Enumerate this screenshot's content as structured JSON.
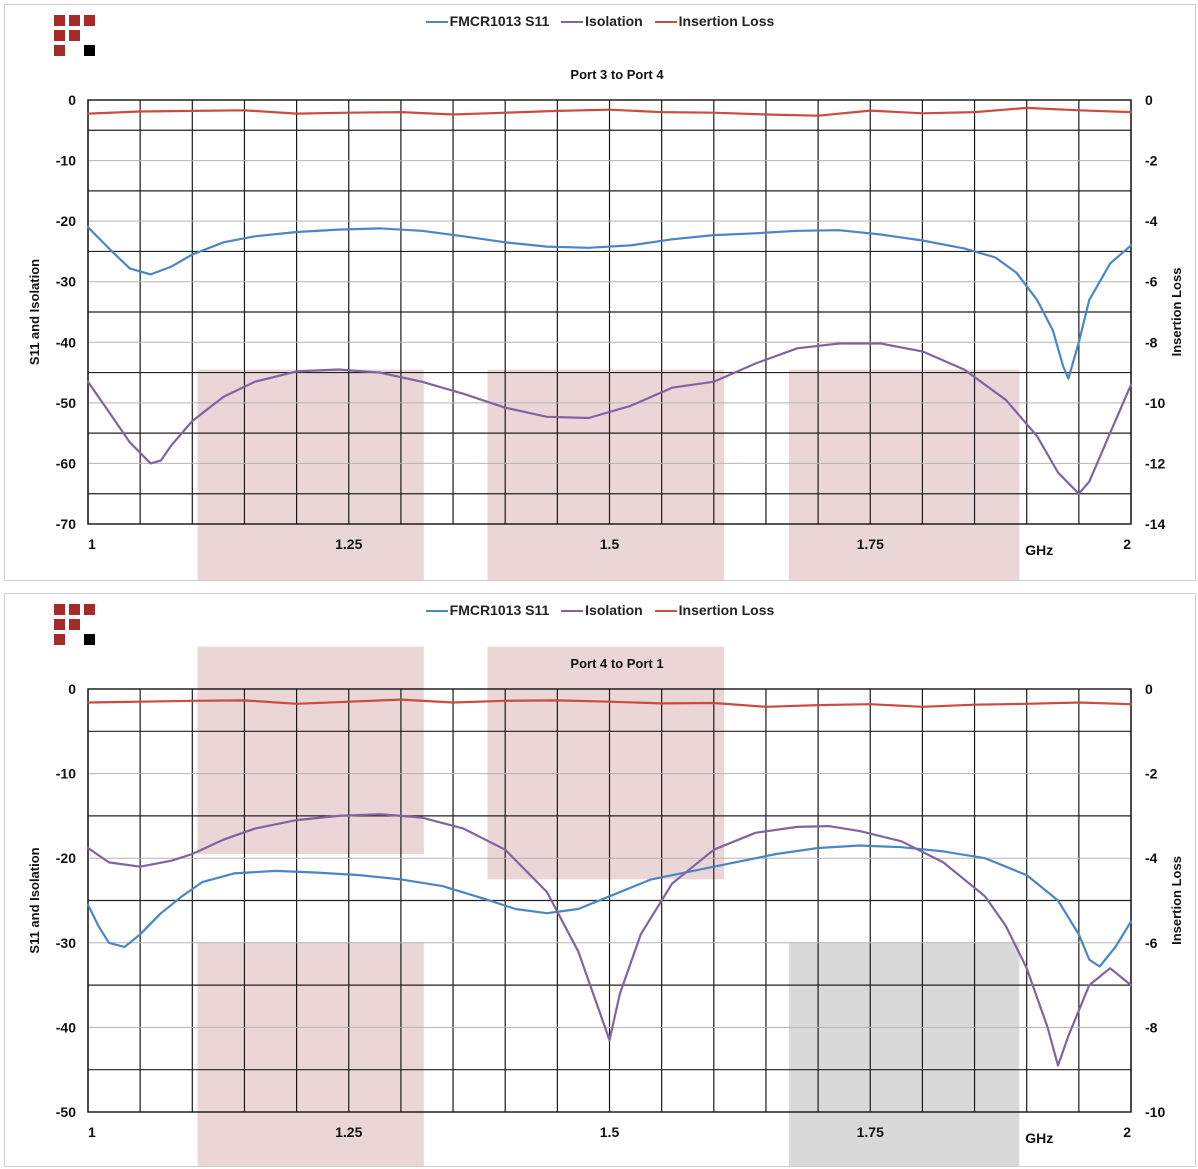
{
  "legend": {
    "s11": "FMCR1013 S11",
    "isolation": "Isolation",
    "insertion_loss": "Insertion Loss"
  },
  "colors": {
    "s11": "#4a86c6",
    "isolation": "#8064a2",
    "insertion_loss": "#cc4b3f",
    "band_pink": "#ead6d6",
    "band_gray": "#d9d9d9",
    "logo_red": "#a52a2a",
    "logo_black": "#000000"
  },
  "chart_data": [
    {
      "type": "line",
      "title": "Port 3 to Port 4",
      "ylabel": "S11 and Isolation",
      "y2label": "Insertion Loss",
      "xunit": "GHz",
      "xlim": [
        1,
        2
      ],
      "ylim": [
        -70,
        0
      ],
      "y2lim": [
        -14,
        0
      ],
      "xticks": [
        "1",
        "1.25",
        "1.5",
        "1.75",
        "2"
      ],
      "yticks": [
        "0",
        "-10",
        "-20",
        "-30",
        "-40",
        "-50",
        "-60",
        "-70"
      ],
      "y2ticks": [
        "0",
        "-2",
        "-4",
        "-6",
        "-8",
        "-10",
        "-12",
        "-14"
      ],
      "grid": true,
      "legend": "top-center",
      "bands": [
        {
          "x0": 1.105,
          "x1": 1.322,
          "y0": -44.5,
          "y1": -80,
          "color": "pink"
        },
        {
          "x0": 1.383,
          "x1": 1.61,
          "y0": -44.5,
          "y1": -80,
          "color": "pink"
        },
        {
          "x0": 1.672,
          "x1": 1.893,
          "y0": -44.5,
          "y1": -80,
          "color": "pink"
        }
      ],
      "series": [
        {
          "name": "FMCR1013 S11",
          "axis": "left",
          "color": "s11",
          "x": [
            1.0,
            1.02,
            1.04,
            1.06,
            1.08,
            1.1,
            1.13,
            1.16,
            1.2,
            1.24,
            1.28,
            1.32,
            1.36,
            1.4,
            1.44,
            1.48,
            1.52,
            1.56,
            1.6,
            1.64,
            1.68,
            1.72,
            1.76,
            1.8,
            1.84,
            1.87,
            1.89,
            1.91,
            1.925,
            1.935,
            1.94,
            1.95,
            1.96,
            1.98,
            2.0
          ],
          "y": [
            -21,
            -24.5,
            -27.8,
            -28.8,
            -27.5,
            -25.5,
            -23.5,
            -22.5,
            -21.8,
            -21.4,
            -21.2,
            -21.6,
            -22.5,
            -23.5,
            -24.2,
            -24.4,
            -24,
            -23,
            -22.3,
            -22,
            -21.6,
            -21.5,
            -22.2,
            -23.2,
            -24.5,
            -26,
            -28.5,
            -33,
            -38,
            -44,
            -46,
            -40,
            -33,
            -27,
            -24
          ]
        },
        {
          "name": "Isolation",
          "axis": "left",
          "color": "isolation",
          "x": [
            1.0,
            1.02,
            1.04,
            1.06,
            1.07,
            1.08,
            1.1,
            1.13,
            1.16,
            1.2,
            1.24,
            1.28,
            1.32,
            1.36,
            1.4,
            1.44,
            1.48,
            1.52,
            1.56,
            1.6,
            1.64,
            1.68,
            1.72,
            1.76,
            1.8,
            1.84,
            1.88,
            1.91,
            1.93,
            1.95,
            1.96,
            1.98,
            2.0
          ],
          "y": [
            -46.5,
            -51.5,
            -56.5,
            -60,
            -59.5,
            -57,
            -53,
            -49,
            -46.5,
            -44.8,
            -44.5,
            -45,
            -46.5,
            -48.5,
            -50.8,
            -52.3,
            -52.5,
            -50.5,
            -47.5,
            -46.5,
            -43.5,
            -41,
            -40.2,
            -40.2,
            -41.5,
            -44.5,
            -49.5,
            -55.5,
            -61.5,
            -65,
            -63,
            -55,
            -47
          ]
        },
        {
          "name": "Insertion Loss",
          "axis": "right",
          "color": "insertion_loss",
          "x": [
            1.0,
            1.05,
            1.1,
            1.15,
            1.2,
            1.25,
            1.3,
            1.35,
            1.4,
            1.45,
            1.5,
            1.55,
            1.6,
            1.65,
            1.7,
            1.75,
            1.8,
            1.85,
            1.9,
            1.95,
            2.0
          ],
          "y": [
            -0.45,
            -0.38,
            -0.36,
            -0.34,
            -0.45,
            -0.42,
            -0.4,
            -0.48,
            -0.42,
            -0.36,
            -0.32,
            -0.4,
            -0.42,
            -0.48,
            -0.52,
            -0.35,
            -0.44,
            -0.4,
            -0.26,
            -0.34,
            -0.4
          ]
        }
      ]
    },
    {
      "type": "line",
      "title": "Port 4 to Port 1",
      "ylabel": "S11 and Isolation",
      "y2label": "Insertion Loss",
      "xunit": "GHz",
      "xlim": [
        1,
        2
      ],
      "ylim": [
        -50,
        0
      ],
      "y2lim": [
        -10,
        0
      ],
      "xticks": [
        "1",
        "1.25",
        "1.5",
        "1.75",
        "2"
      ],
      "yticks": [
        "0",
        "-10",
        "-20",
        "-30",
        "-40",
        "-50"
      ],
      "y2ticks": [
        "0",
        "-2",
        "-4",
        "-6",
        "-8",
        "-10"
      ],
      "grid": true,
      "legend": "top-center",
      "bands": [
        {
          "x0": 1.105,
          "x1": 1.322,
          "y0": 5,
          "y1": -19.5,
          "color": "pink"
        },
        {
          "x0": 1.383,
          "x1": 1.61,
          "y0": 5,
          "y1": -22.5,
          "color": "pink"
        },
        {
          "x0": 1.105,
          "x1": 1.322,
          "y0": -30,
          "y1": -60,
          "color": "pink"
        },
        {
          "x0": 1.672,
          "x1": 1.893,
          "y0": -30,
          "y1": -60,
          "color": "gray"
        }
      ],
      "series": [
        {
          "name": "FMCR1013 S11",
          "axis": "left",
          "color": "s11",
          "x": [
            1.0,
            1.01,
            1.02,
            1.035,
            1.05,
            1.07,
            1.09,
            1.11,
            1.14,
            1.18,
            1.22,
            1.26,
            1.3,
            1.34,
            1.38,
            1.41,
            1.44,
            1.47,
            1.5,
            1.54,
            1.58,
            1.62,
            1.66,
            1.7,
            1.74,
            1.78,
            1.82,
            1.86,
            1.9,
            1.93,
            1.95,
            1.96,
            1.97,
            1.985,
            2.0
          ],
          "y": [
            -25.5,
            -28,
            -30,
            -30.5,
            -29,
            -26.5,
            -24.5,
            -22.8,
            -21.8,
            -21.5,
            -21.7,
            -22,
            -22.5,
            -23.3,
            -24.8,
            -26,
            -26.5,
            -26,
            -24.5,
            -22.5,
            -21.5,
            -20.5,
            -19.5,
            -18.8,
            -18.5,
            -18.7,
            -19.2,
            -20,
            -22,
            -25,
            -29,
            -32,
            -32.8,
            -30.5,
            -27.5
          ]
        },
        {
          "name": "Isolation",
          "axis": "left",
          "color": "isolation",
          "x": [
            1.0,
            1.02,
            1.05,
            1.08,
            1.1,
            1.13,
            1.16,
            1.2,
            1.24,
            1.28,
            1.32,
            1.36,
            1.4,
            1.44,
            1.47,
            1.49,
            1.5,
            1.51,
            1.53,
            1.56,
            1.6,
            1.64,
            1.68,
            1.71,
            1.74,
            1.78,
            1.82,
            1.86,
            1.88,
            1.9,
            1.92,
            1.93,
            1.94,
            1.96,
            1.98,
            2.0
          ],
          "y": [
            -18.8,
            -20.5,
            -21,
            -20.3,
            -19.5,
            -17.8,
            -16.5,
            -15.5,
            -15,
            -14.8,
            -15.2,
            -16.5,
            -19,
            -24,
            -31,
            -38,
            -41.5,
            -36,
            -29,
            -23,
            -19,
            -17,
            -16.3,
            -16.2,
            -16.8,
            -18,
            -20.5,
            -24.5,
            -28,
            -33,
            -40,
            -44.5,
            -41,
            -35,
            -33,
            -35
          ]
        },
        {
          "name": "Insertion Loss",
          "axis": "right",
          "color": "insertion_loss",
          "x": [
            1.0,
            1.05,
            1.1,
            1.15,
            1.2,
            1.25,
            1.3,
            1.35,
            1.4,
            1.45,
            1.5,
            1.55,
            1.6,
            1.65,
            1.7,
            1.75,
            1.8,
            1.85,
            1.9,
            1.95,
            2.0
          ],
          "y": [
            -0.32,
            -0.3,
            -0.28,
            -0.27,
            -0.35,
            -0.3,
            -0.25,
            -0.32,
            -0.28,
            -0.27,
            -0.3,
            -0.34,
            -0.33,
            -0.42,
            -0.38,
            -0.36,
            -0.42,
            -0.37,
            -0.35,
            -0.32,
            -0.36
          ]
        }
      ]
    }
  ]
}
